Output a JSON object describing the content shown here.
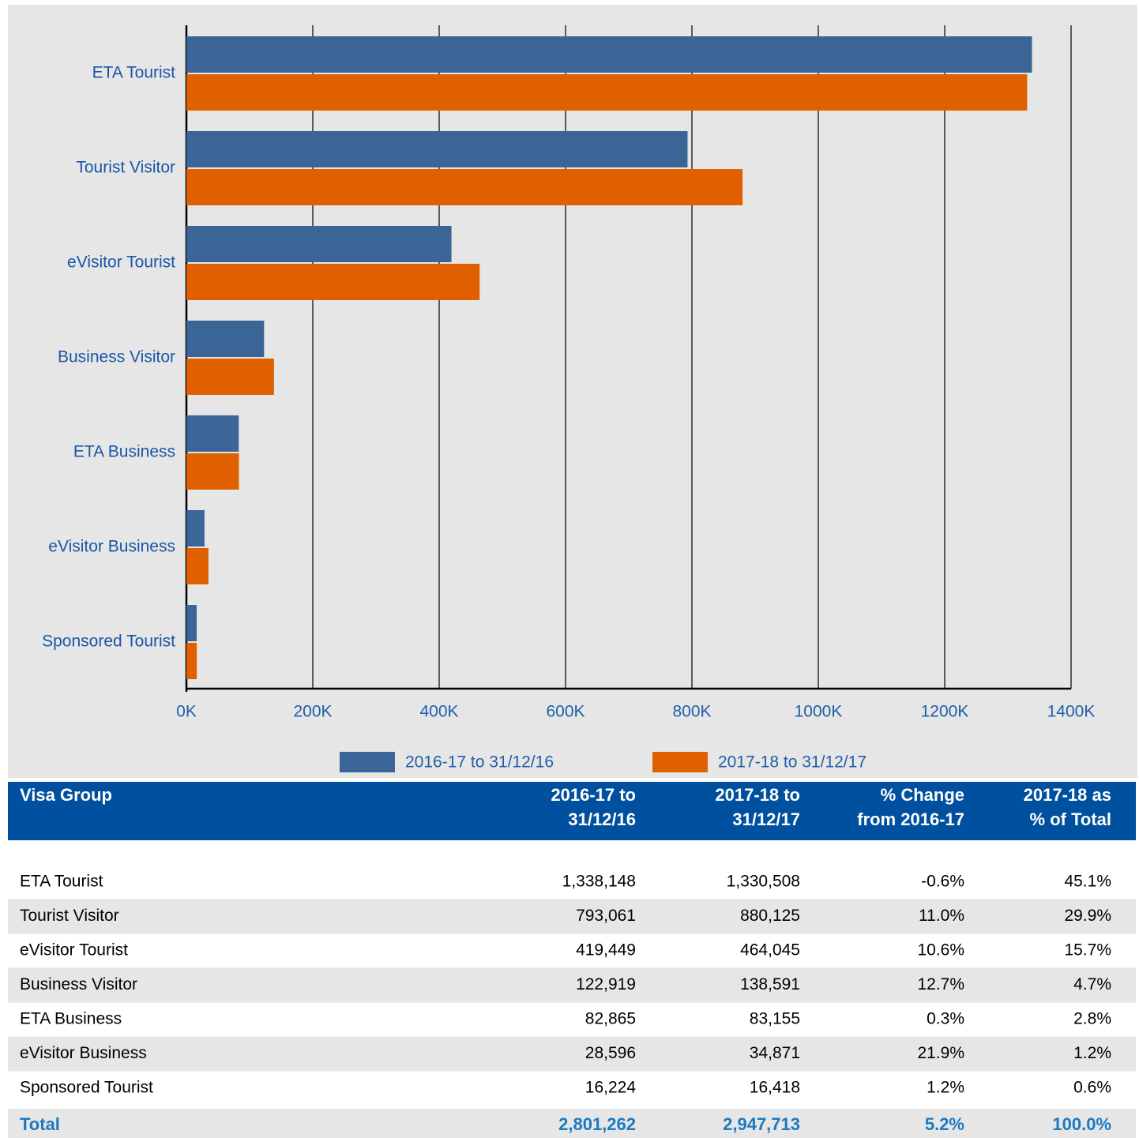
{
  "chart_data": {
    "type": "bar",
    "orientation": "horizontal",
    "categories": [
      "ETA Tourist",
      "Tourist Visitor",
      "eVisitor Tourist",
      "Business Visitor",
      "ETA Business",
      "eVisitor Business",
      "Sponsored Tourist"
    ],
    "series": [
      {
        "name": "2016-17 to 31/12/16",
        "color": "#3a6596",
        "values": [
          1338148,
          793061,
          419449,
          122919,
          82865,
          28596,
          16224
        ]
      },
      {
        "name": "2017-18 to 31/12/17",
        "color": "#e06000",
        "values": [
          1330508,
          880125,
          464045,
          138591,
          83155,
          34871,
          16418
        ]
      }
    ],
    "xlim": [
      0,
      1400000
    ],
    "xticks": [
      {
        "value": 0,
        "label": "0K"
      },
      {
        "value": 200000,
        "label": "200K"
      },
      {
        "value": 400000,
        "label": "400K"
      },
      {
        "value": 600000,
        "label": "600K"
      },
      {
        "value": 800000,
        "label": "800K"
      },
      {
        "value": 1000000,
        "label": "1000K"
      },
      {
        "value": 1200000,
        "label": "1200K"
      },
      {
        "value": 1400000,
        "label": "1400K"
      }
    ],
    "grid": true,
    "legend": "bottom"
  },
  "table": {
    "header": [
      [
        "Visa Group"
      ],
      [
        "2016-17 to",
        "31/12/16"
      ],
      [
        "2017-18 to",
        "31/12/17"
      ],
      [
        "% Change",
        "from 2016-17"
      ],
      [
        "2017-18 as",
        "% of Total"
      ]
    ],
    "rows": [
      [
        "ETA Tourist",
        "1,338,148",
        "1,330,508",
        "-0.6%",
        "45.1%"
      ],
      [
        "Tourist Visitor",
        "793,061",
        "880,125",
        "11.0%",
        "29.9%"
      ],
      [
        "eVisitor Tourist",
        "419,449",
        "464,045",
        "10.6%",
        "15.7%"
      ],
      [
        "Business Visitor",
        "122,919",
        "138,591",
        "12.7%",
        "4.7%"
      ],
      [
        "ETA Business",
        "82,865",
        "83,155",
        "0.3%",
        "2.8%"
      ],
      [
        "eVisitor Business",
        "28,596",
        "34,871",
        "21.9%",
        "1.2%"
      ],
      [
        "Sponsored Tourist",
        "16,224",
        "16,418",
        "1.2%",
        "0.6%"
      ]
    ],
    "total": [
      "Total",
      "2,801,262",
      "2,947,713",
      "5.2%",
      "100.0%"
    ]
  }
}
